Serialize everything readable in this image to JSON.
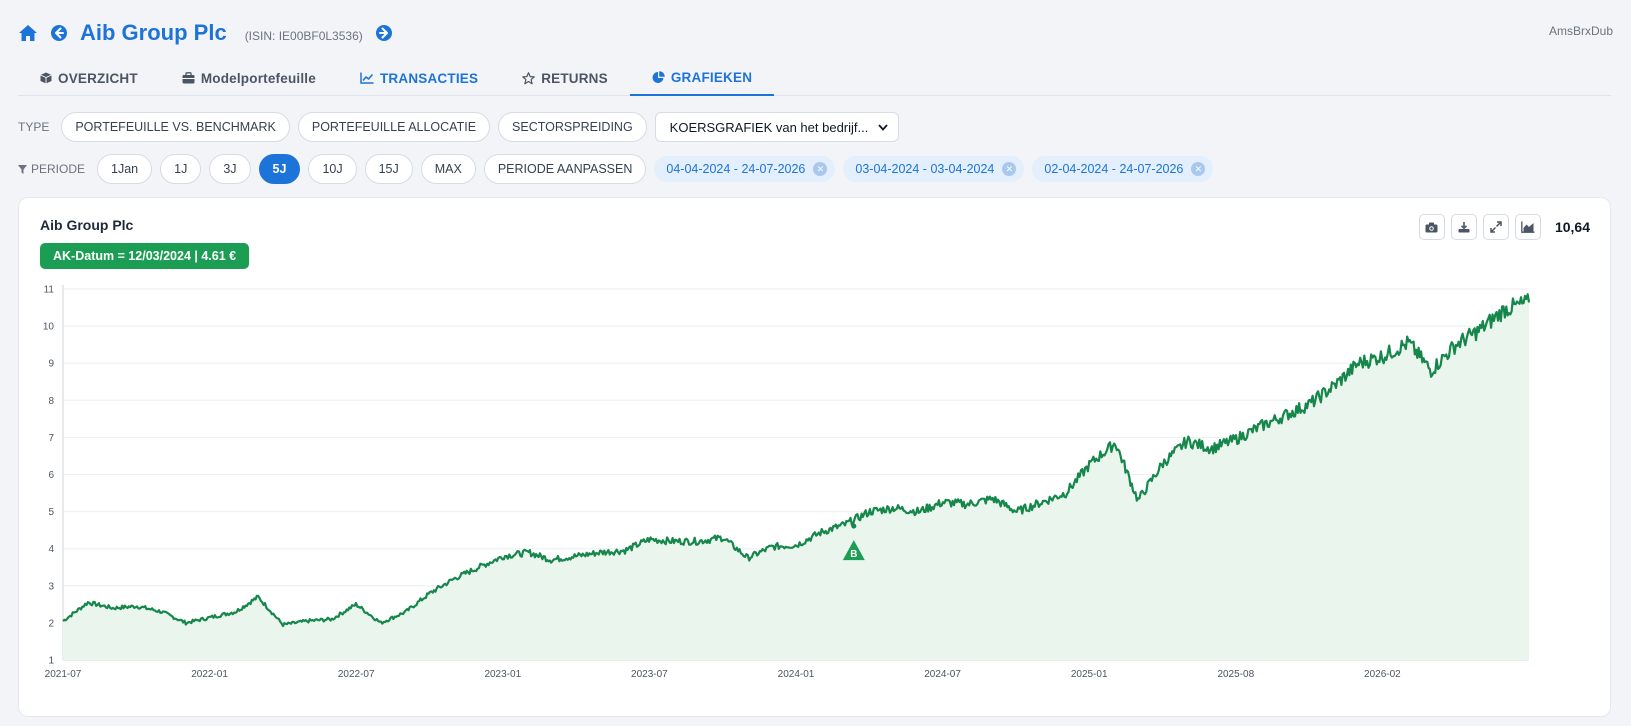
{
  "header": {
    "title": "Aib Group Plc",
    "isin": "(ISIN: IE00BF0L3536)",
    "account": "AmsBrxDub"
  },
  "tabs": [
    {
      "label": "OVERZICHT",
      "icon": "box-icon"
    },
    {
      "label": "Modelportefeuille",
      "icon": "briefcase-icon"
    },
    {
      "label": "TRANSACTIES",
      "icon": "line-chart-icon"
    },
    {
      "label": "RETURNS",
      "icon": "star-icon"
    },
    {
      "label": "GRAFIEKEN",
      "icon": "pie-chart-icon",
      "active": true
    }
  ],
  "type_row": {
    "label": "TYPE",
    "buttons": [
      "PORTEFEUILLE VS. BENCHMARK",
      "PORTEFEUILLE ALLOCATIE",
      "SECTORSPREIDING"
    ],
    "select_value": "KOERSGRAFIEK van het bedrijf..."
  },
  "period_row": {
    "label": "PERIODE",
    "buttons": [
      "1Jan",
      "1J",
      "3J",
      "5J",
      "10J",
      "15J",
      "MAX",
      "PERIODE AANPASSEN"
    ],
    "active": "5J",
    "chips": [
      "04-04-2024 - 24-07-2026",
      "03-04-2024 - 03-04-2024",
      "02-04-2024 - 24-07-2026"
    ]
  },
  "card": {
    "title": "Aib Group Plc",
    "badge": "AK-Datum = 12/03/2024 | 4.61 €",
    "last_value": "10,64"
  },
  "colors": {
    "accent": "#1d74d8",
    "line": "#16874a",
    "area": "#eaf5ee",
    "badge": "#1c9d54"
  },
  "chart_data": {
    "type": "area",
    "x_tick_labels": [
      "2021-07",
      "2022-01",
      "2022-07",
      "2023-01",
      "2023-07",
      "2024-01",
      "2024-07",
      "2025-01",
      "2025-08",
      "2026-02"
    ],
    "ylim": [
      1,
      11
    ],
    "y_ticks": [
      1,
      2,
      3,
      4,
      5,
      6,
      7,
      8,
      9,
      10,
      11
    ],
    "grid": true,
    "marker": {
      "label": "B",
      "x": "2024-03-12",
      "y": 4.61
    },
    "series": [
      {
        "x": [
          "2021-07-01",
          "2021-08-01",
          "2021-09-01",
          "2021-10-01",
          "2021-11-01",
          "2021-12-01",
          "2022-01-01",
          "2022-02-01",
          "2022-03-01",
          "2022-04-01",
          "2022-05-01",
          "2022-06-01",
          "2022-07-01",
          "2022-08-01",
          "2022-09-01",
          "2022-10-01",
          "2022-11-01",
          "2022-12-01",
          "2023-01-01",
          "2023-02-01",
          "2023-03-01",
          "2023-04-01",
          "2023-05-01",
          "2023-06-01",
          "2023-07-01",
          "2023-08-01",
          "2023-09-01",
          "2023-10-01",
          "2023-11-01",
          "2023-12-01",
          "2024-01-01",
          "2024-02-01",
          "2024-03-01",
          "2024-04-01",
          "2024-05-01",
          "2024-06-01",
          "2024-07-01",
          "2024-08-01",
          "2024-09-01",
          "2024-10-01",
          "2024-11-01",
          "2024-12-01",
          "2025-01-01",
          "2025-02-01",
          "2025-03-01",
          "2025-04-01",
          "2025-05-01",
          "2025-06-01",
          "2025-07-01",
          "2025-08-01",
          "2025-09-01",
          "2025-10-01",
          "2025-11-01",
          "2025-12-01",
          "2026-01-01",
          "2026-02-01",
          "2026-03-01",
          "2026-04-01",
          "2026-05-01",
          "2026-06-01",
          "2026-07-01"
        ],
        "values": [
          2.05,
          2.55,
          2.4,
          2.45,
          2.3,
          2.0,
          2.15,
          2.3,
          2.7,
          1.95,
          2.05,
          2.1,
          2.5,
          2.0,
          2.3,
          2.8,
          3.2,
          3.5,
          3.8,
          3.9,
          3.7,
          3.8,
          3.9,
          3.95,
          4.25,
          4.2,
          4.2,
          4.3,
          3.75,
          4.05,
          4.1,
          4.45,
          4.65,
          5.0,
          5.1,
          5.0,
          5.25,
          5.2,
          5.35,
          5.0,
          5.25,
          5.5,
          6.3,
          6.85,
          5.3,
          6.3,
          6.9,
          6.7,
          6.95,
          7.3,
          7.6,
          7.9,
          8.4,
          9.0,
          9.2,
          9.55,
          8.8,
          9.5,
          9.9,
          10.45,
          10.64
        ]
      }
    ]
  }
}
